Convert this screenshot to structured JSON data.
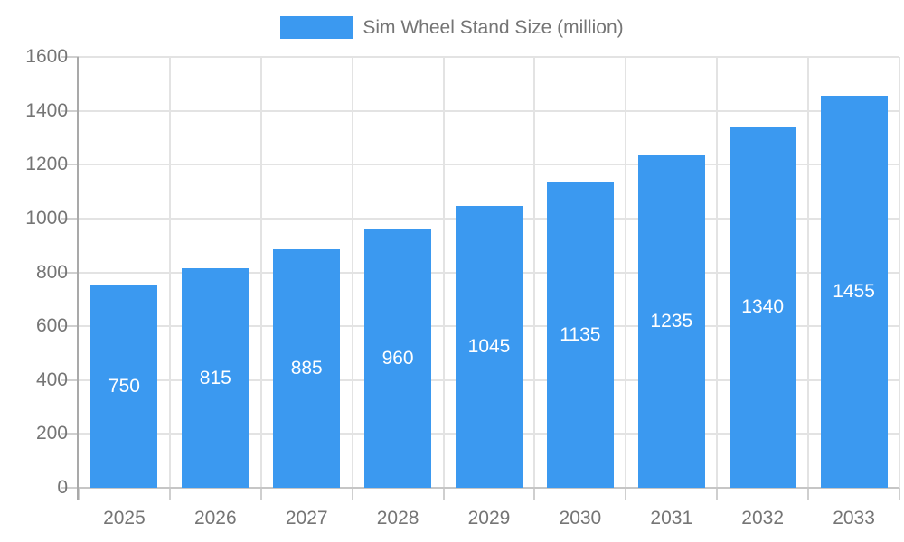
{
  "chart_data": {
    "type": "bar",
    "title": "",
    "legend": "Sim Wheel Stand Size (million)",
    "legend_position": "top-center",
    "categories": [
      "2025",
      "2026",
      "2027",
      "2028",
      "2029",
      "2030",
      "2031",
      "2032",
      "2033"
    ],
    "values": [
      750,
      815,
      885,
      960,
      1045,
      1135,
      1235,
      1340,
      1455
    ],
    "xlabel": "",
    "ylabel": "",
    "ylim": [
      0,
      1600
    ],
    "ytick_step": 200,
    "grid": true,
    "colors": {
      "bar": "#3B99F0",
      "bar_value_label": "#ffffff",
      "axis_text": "#757575",
      "gridline": "#e3e3e3",
      "axis_line": "#a9a9a9",
      "baseline": "#c6c6c6",
      "tick": "#cfcfcf",
      "background": "#ffffff"
    }
  }
}
